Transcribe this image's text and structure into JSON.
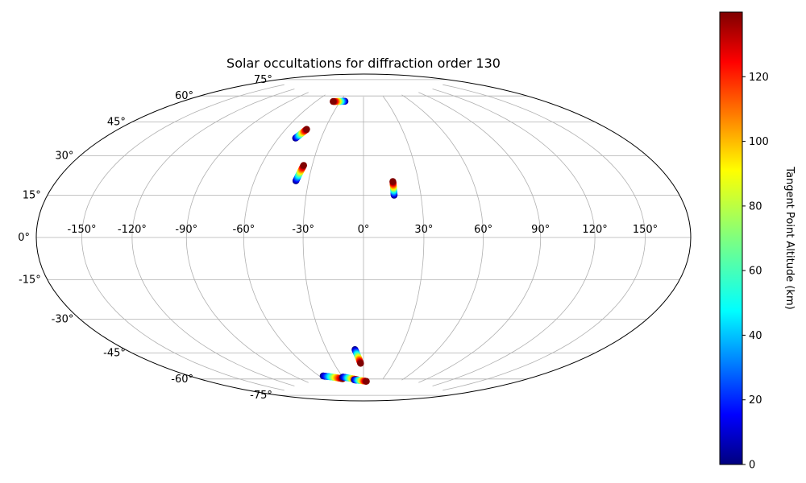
{
  "chart_data": {
    "type": "scatter",
    "projection": "hammer",
    "title": "Solar occultations for diffraction order 130",
    "grid": true,
    "lon_ticks": [
      -150,
      -120,
      -90,
      -60,
      -30,
      0,
      30,
      60,
      90,
      120,
      150
    ],
    "lon_tick_labels": [
      "-150°",
      "-120°",
      "-90°",
      "-60°",
      "-30°",
      "0°",
      "30°",
      "60°",
      "90°",
      "120°",
      "150°"
    ],
    "lat_ticks": [
      75,
      60,
      45,
      30,
      15,
      0,
      -15,
      -30,
      -45,
      -60,
      -75
    ],
    "lat_tick_labels": [
      "75°",
      "60°",
      "45°",
      "30°",
      "15°",
      "0°",
      "-15°",
      "-30°",
      "-45°",
      "-60°",
      "-75°"
    ],
    "colorbar": {
      "label": "Tangent Point Altitude (km)",
      "range": [
        0,
        140
      ],
      "ticks": [
        0,
        20,
        40,
        60,
        80,
        100,
        120
      ],
      "tick_labels": [
        "0",
        "20",
        "40",
        "60",
        "80",
        "100",
        "120"
      ],
      "colormap": "jet"
    },
    "series": [
      {
        "start": [
          -24,
          72
        ],
        "end": [
          -39,
          71.5
        ],
        "alt_start": 0,
        "alt_end": 140,
        "n": 25
      },
      {
        "start": [
          -48,
          50
        ],
        "end": [
          -44,
          55
        ],
        "alt_start": 0,
        "alt_end": 140,
        "n": 25
      },
      {
        "start": [
          -37,
          28
        ],
        "end": [
          -35,
          36
        ],
        "alt_start": 0,
        "alt_end": 140,
        "n": 30
      },
      {
        "start": [
          16,
          21
        ],
        "end": [
          16,
          28
        ],
        "alt_start": 0,
        "alt_end": 140,
        "n": 30
      },
      {
        "start": [
          -7,
          -58
        ],
        "end": [
          -3,
          -66
        ],
        "alt_start": 0,
        "alt_end": 140,
        "n": 25
      },
      {
        "start": [
          -55,
          -72.5
        ],
        "end": [
          -32,
          -75
        ],
        "alt_start": 0,
        "alt_end": 140,
        "n": 35
      },
      {
        "start": [
          -30,
          -74
        ],
        "end": [
          -10,
          -76
        ],
        "alt_start": 0,
        "alt_end": 140,
        "n": 30
      },
      {
        "start": [
          -15,
          -76
        ],
        "end": [
          5,
          -77
        ],
        "alt_start": 0,
        "alt_end": 140,
        "n": 30
      }
    ]
  }
}
